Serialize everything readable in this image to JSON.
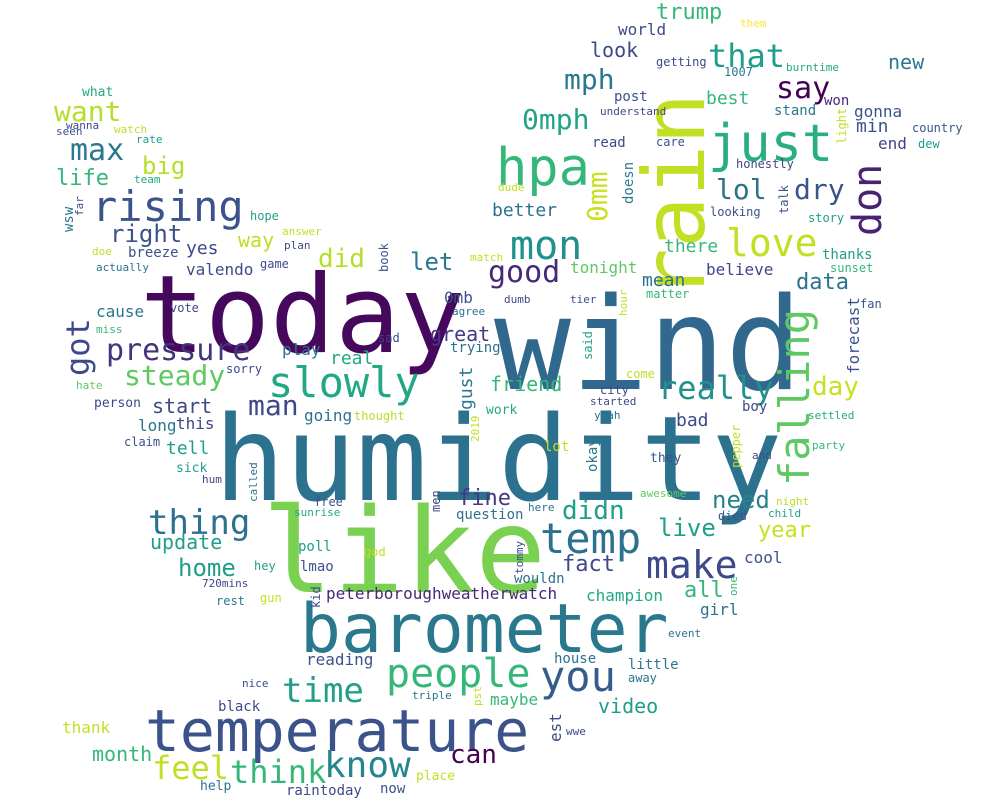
{
  "words": [
    {
      "text": "humidity",
      "color": "#2c728e"
    },
    {
      "text": "wind",
      "color": "#31688e"
    },
    {
      "text": "like",
      "color": "#7ad151"
    },
    {
      "text": "today",
      "color": "#46085c"
    },
    {
      "text": "barometer",
      "color": "#2a788e"
    },
    {
      "text": "temperature",
      "color": "#3b528b"
    },
    {
      "text": "rain",
      "color": "#c2df23"
    },
    {
      "text": "hpa",
      "color": "#35b779"
    },
    {
      "text": "just",
      "color": "#29af7f"
    },
    {
      "text": "slowly",
      "color": "#22a884"
    },
    {
      "text": "falling",
      "color": "#5ec962"
    },
    {
      "text": "rising",
      "color": "#3b528b"
    },
    {
      "text": "mon",
      "color": "#21918c"
    },
    {
      "text": "don",
      "color": "#482374"
    },
    {
      "text": "pressure",
      "color": "#46337e"
    },
    {
      "text": "temp",
      "color": "#2c728e"
    },
    {
      "text": "you",
      "color": "#365c8d"
    },
    {
      "text": "people",
      "color": "#35b779"
    },
    {
      "text": "time",
      "color": "#1fa088"
    },
    {
      "text": "know",
      "color": "#25858e"
    },
    {
      "text": "feel",
      "color": "#c2df23"
    },
    {
      "text": "think",
      "color": "#35b779"
    },
    {
      "text": "make",
      "color": "#3e4989"
    },
    {
      "text": "love",
      "color": "#c2df23"
    },
    {
      "text": "thing",
      "color": "#2c728e"
    },
    {
      "text": "really",
      "color": "#21918c"
    },
    {
      "text": "steady",
      "color": "#5ec962"
    },
    {
      "text": "good",
      "color": "#482878"
    },
    {
      "text": "that",
      "color": "#1f9e89"
    },
    {
      "text": "got",
      "color": "#3e4989"
    },
    {
      "text": "max",
      "color": "#2a788e"
    },
    {
      "text": "want",
      "color": "#b5de2b"
    },
    {
      "text": "0mph",
      "color": "#20a486"
    },
    {
      "text": "0mm",
      "color": "#c8e020"
    },
    {
      "text": "mph",
      "color": "#2a788e"
    },
    {
      "text": "say",
      "color": "#440154"
    },
    {
      "text": "lol",
      "color": "#2c728e"
    },
    {
      "text": "dry",
      "color": "#3b528b"
    },
    {
      "text": "man",
      "color": "#3e4989"
    },
    {
      "text": "trump",
      "color": "#35b779"
    },
    {
      "text": "didn",
      "color": "#1f9e89"
    },
    {
      "text": "home",
      "color": "#1f9e89"
    },
    {
      "text": "day",
      "color": "#c8e020"
    },
    {
      "text": "can",
      "color": "#440154"
    },
    {
      "text": "need",
      "color": "#26828e"
    },
    {
      "text": "let",
      "color": "#2a788e"
    },
    {
      "text": "did",
      "color": "#b5de2b"
    },
    {
      "text": "right",
      "color": "#3b528b"
    },
    {
      "text": "big",
      "color": "#b5de2b"
    },
    {
      "text": "life",
      "color": "#35b779"
    },
    {
      "text": "way",
      "color": "#bddf26"
    },
    {
      "text": "data",
      "color": "#2c728e"
    },
    {
      "text": "live",
      "color": "#1fa088"
    },
    {
      "text": "fine",
      "color": "#443983"
    },
    {
      "text": "fact",
      "color": "#3e4989"
    },
    {
      "text": "update",
      "color": "#1f9e89"
    },
    {
      "text": "year",
      "color": "#c8e020"
    },
    {
      "text": "friend",
      "color": "#35b779"
    },
    {
      "text": "better",
      "color": "#2c728e"
    },
    {
      "text": "start",
      "color": "#3e4989"
    },
    {
      "text": "great",
      "color": "#443983"
    },
    {
      "text": "all",
      "color": "#35b779"
    },
    {
      "text": "month",
      "color": "#35b779"
    },
    {
      "text": "video",
      "color": "#1f9e89"
    },
    {
      "text": "new",
      "color": "#2a788e"
    },
    {
      "text": "look",
      "color": "#3e4989"
    },
    {
      "text": "best",
      "color": "#35b779"
    },
    {
      "text": "believe",
      "color": "#414487"
    },
    {
      "text": "mean",
      "color": "#2c728e"
    },
    {
      "text": "there",
      "color": "#38b977"
    },
    {
      "text": "gonna",
      "color": "#3b528b"
    },
    {
      "text": "min",
      "color": "#3b528b"
    },
    {
      "text": "end",
      "color": "#414487"
    },
    {
      "text": "world",
      "color": "#3e4989"
    },
    {
      "text": "tell",
      "color": "#1f9e89"
    },
    {
      "text": "long",
      "color": "#2a788e"
    },
    {
      "text": "this",
      "color": "#414487"
    },
    {
      "text": "real",
      "color": "#22a884"
    },
    {
      "text": "play",
      "color": "#2c728e"
    },
    {
      "text": "gust",
      "color": "#2a788e"
    },
    {
      "text": "going",
      "color": "#2c728e"
    },
    {
      "text": "bad",
      "color": "#3e4989"
    },
    {
      "text": "cool",
      "color": "#3b528b"
    },
    {
      "text": "tonight",
      "color": "#5ec962"
    },
    {
      "text": "cause",
      "color": "#2a788e"
    },
    {
      "text": "yes",
      "color": "#3e4989"
    },
    {
      "text": "valendo",
      "color": "#3e4989"
    },
    {
      "text": "0mb",
      "color": "#3b528b"
    },
    {
      "text": "trying",
      "color": "#2c728e"
    },
    {
      "text": "forecast",
      "color": "#3b528b"
    },
    {
      "text": "thanks",
      "color": "#1f9e89"
    },
    {
      "text": "sunset",
      "color": "#35b779"
    },
    {
      "text": "fan",
      "color": "#3b528b"
    },
    {
      "text": "champion",
      "color": "#22a884"
    },
    {
      "text": "peterboroughweatherwatch",
      "color": "#482878"
    },
    {
      "text": "girl",
      "color": "#2c728e"
    },
    {
      "text": "reading",
      "color": "#3b528b"
    },
    {
      "text": "house",
      "color": "#2c728e"
    },
    {
      "text": "little",
      "color": "#2a788e"
    },
    {
      "text": "maybe",
      "color": "#35b779"
    },
    {
      "text": "thank",
      "color": "#c2df23"
    },
    {
      "text": "black",
      "color": "#3e4989"
    },
    {
      "text": "raintoday",
      "color": "#3e4989"
    },
    {
      "text": "now",
      "color": "#3b528b"
    },
    {
      "text": "est",
      "color": "#3e4989"
    },
    {
      "text": "wouldn",
      "color": "#2c728e"
    },
    {
      "text": "question",
      "color": "#2c728e"
    },
    {
      "text": "poll",
      "color": "#1f9e89"
    },
    {
      "text": "lmao",
      "color": "#3b528b"
    },
    {
      "text": "doesn",
      "color": "#2a788e"
    },
    {
      "text": "looking",
      "color": "#3b528b"
    },
    {
      "text": "talk",
      "color": "#3b528b"
    },
    {
      "text": "story",
      "color": "#1f9e89"
    },
    {
      "text": "post",
      "color": "#3b528b"
    },
    {
      "text": "read",
      "color": "#3e4989"
    },
    {
      "text": "care",
      "color": "#3b528b"
    },
    {
      "text": "honestly",
      "color": "#3e4989"
    },
    {
      "text": "won",
      "color": "#482878"
    },
    {
      "text": "stand",
      "color": "#2a788e"
    },
    {
      "text": "country",
      "color": "#3b528b"
    },
    {
      "text": "dew",
      "color": "#1f9e89"
    },
    {
      "text": "light",
      "color": "#c2df23"
    },
    {
      "text": "burntime",
      "color": "#22a884"
    },
    {
      "text": "1007",
      "color": "#2a788e"
    },
    {
      "text": "getting",
      "color": "#3e4989"
    },
    {
      "text": "understand",
      "color": "#3e4989"
    },
    {
      "text": "them",
      "color": "#fde725"
    },
    {
      "text": "dude",
      "color": "#bddf26"
    },
    {
      "text": "what",
      "color": "#22a884"
    },
    {
      "text": "wanna",
      "color": "#3e4989"
    },
    {
      "text": "seen",
      "color": "#3b528b"
    },
    {
      "text": "watch",
      "color": "#c2df23"
    },
    {
      "text": "rate",
      "color": "#1f9e89"
    },
    {
      "text": "team",
      "color": "#22a884"
    },
    {
      "text": "far",
      "color": "#3e4989"
    },
    {
      "text": "wsw",
      "color": "#2a788e"
    },
    {
      "text": "hope",
      "color": "#1f9e89"
    },
    {
      "text": "answer",
      "color": "#bddf26"
    },
    {
      "text": "plan",
      "color": "#3e4989"
    },
    {
      "text": "doe",
      "color": "#bddf26"
    },
    {
      "text": "breeze",
      "color": "#3b528b"
    },
    {
      "text": "actually",
      "color": "#2c728e"
    },
    {
      "text": "game",
      "color": "#3e4989"
    },
    {
      "text": "book",
      "color": "#3b528b"
    },
    {
      "text": "match",
      "color": "#c2df23"
    },
    {
      "text": "vote",
      "color": "#3e4989"
    },
    {
      "text": "miss",
      "color": "#35b779"
    },
    {
      "text": "dumb",
      "color": "#3e4989"
    },
    {
      "text": "tier",
      "color": "#3e4989"
    },
    {
      "text": "hour",
      "color": "#c2df23"
    },
    {
      "text": "agree",
      "color": "#2c728e"
    },
    {
      "text": "sad",
      "color": "#3e4989"
    },
    {
      "text": "said",
      "color": "#20a486"
    },
    {
      "text": "matter",
      "color": "#35b779"
    },
    {
      "text": "sorry",
      "color": "#3e4989"
    },
    {
      "text": "hate",
      "color": "#5ec962"
    },
    {
      "text": "person",
      "color": "#3e4989"
    },
    {
      "text": "come",
      "color": "#c2df23"
    },
    {
      "text": "city",
      "color": "#3e4989"
    },
    {
      "text": "started",
      "color": "#3e4989"
    },
    {
      "text": "yeah",
      "color": "#2c728e"
    },
    {
      "text": "boy",
      "color": "#3e4989"
    },
    {
      "text": "settled",
      "color": "#22a884"
    },
    {
      "text": "thought",
      "color": "#b5de2b"
    },
    {
      "text": "work",
      "color": "#22a884"
    },
    {
      "text": "2019",
      "color": "#c2df23"
    },
    {
      "text": "claim",
      "color": "#3b528b"
    },
    {
      "text": "sick",
      "color": "#1f9e89"
    },
    {
      "text": "hum",
      "color": "#3e4989"
    },
    {
      "text": "called",
      "color": "#2c728e"
    },
    {
      "text": "lot",
      "color": "#c2df23"
    },
    {
      "text": "okay",
      "color": "#2a788e"
    },
    {
      "text": "pepper",
      "color": "#c2df23"
    },
    {
      "text": "party",
      "color": "#35b779"
    },
    {
      "text": "they",
      "color": "#3b528b"
    },
    {
      "text": "and",
      "color": "#3e4989"
    },
    {
      "text": "awesome",
      "color": "#5ec962"
    },
    {
      "text": "night",
      "color": "#bddf26"
    },
    {
      "text": "child",
      "color": "#20a486"
    },
    {
      "text": "died",
      "color": "#3b528b"
    },
    {
      "text": "free",
      "color": "#3b528b"
    },
    {
      "text": "sunrise",
      "color": "#22a884"
    },
    {
      "text": "men",
      "color": "#3e4989"
    },
    {
      "text": "here",
      "color": "#2c728e"
    },
    {
      "text": "tommy",
      "color": "#3e4989"
    },
    {
      "text": "hey",
      "color": "#1f9e89"
    },
    {
      "text": "god",
      "color": "#c2df23"
    },
    {
      "text": "720mins",
      "color": "#3e4989"
    },
    {
      "text": "gun",
      "color": "#c2df23"
    },
    {
      "text": "rest",
      "color": "#2a788e"
    },
    {
      "text": "kid",
      "color": "#3e4989"
    },
    {
      "text": "one",
      "color": "#35b779"
    },
    {
      "text": "event",
      "color": "#2c728e"
    },
    {
      "text": "nice",
      "color": "#3e4989"
    },
    {
      "text": "triple",
      "color": "#2c728e"
    },
    {
      "text": "pst",
      "color": "#c2df23"
    },
    {
      "text": "away",
      "color": "#2c728e"
    },
    {
      "text": "wwe",
      "color": "#3e4989"
    },
    {
      "text": "help",
      "color": "#2c728e"
    },
    {
      "text": "place",
      "color": "#c2df23"
    }
  ]
}
